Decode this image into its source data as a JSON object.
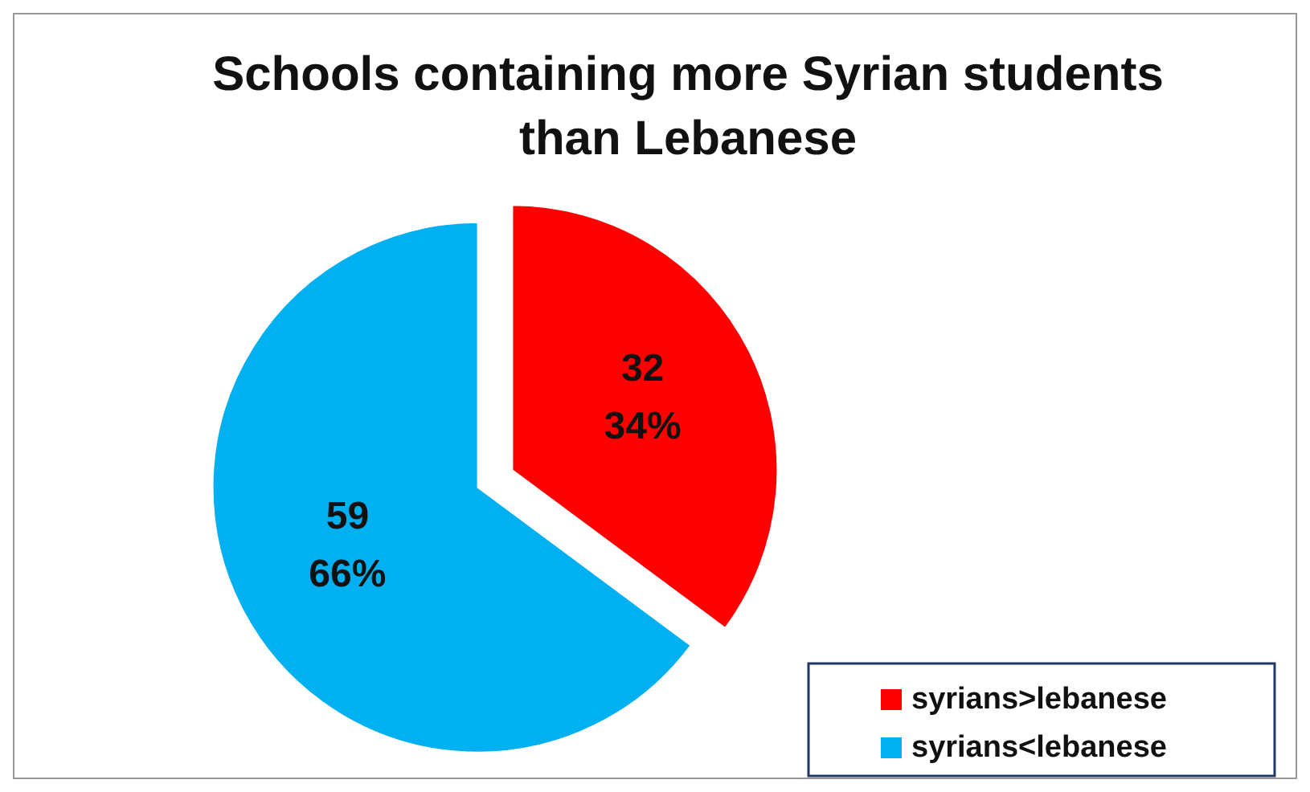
{
  "chart_data": {
    "type": "pie",
    "title": "Schools containing more Syrian students than Lebanese",
    "categories": [
      "syrians>lebanese",
      "syrians<lebanese"
    ],
    "values": [
      32,
      59
    ],
    "colors": [
      "#ff0000",
      "#00b0f0"
    ],
    "value_labels": [
      "32\n34%",
      "59\n66%"
    ],
    "legend": "bottom right"
  }
}
